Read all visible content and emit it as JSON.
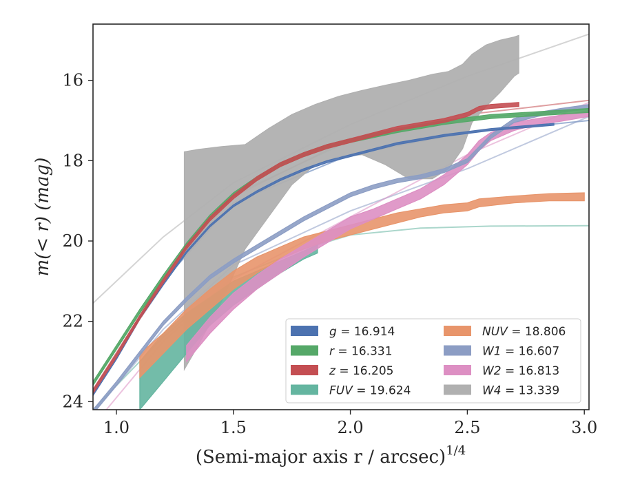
{
  "chart_data": {
    "type": "line",
    "xlabel": "(Semi-major axis r / arcsec)",
    "xlabel_superscript": "1/4",
    "ylabel": "m(< r) (mag)",
    "xlim": [
      0.9,
      3.02
    ],
    "ylim": [
      24.2,
      14.6
    ],
    "y_inverted": true,
    "xticks": [
      1.0,
      1.5,
      2.0,
      2.5,
      3.0
    ],
    "xtick_labels": [
      "1.0",
      "1.5",
      "2.0",
      "2.5",
      "3.0"
    ],
    "yticks": [
      16,
      18,
      20,
      22,
      24
    ],
    "ytick_labels": [
      "16",
      "18",
      "20",
      "22",
      "24"
    ],
    "grid": false,
    "legend_position": "lower-right",
    "legend_columns": 2,
    "series": [
      {
        "name": "g = 16.914",
        "label_italic": "g",
        "label_value": "= 16.914",
        "color": "#4c72b0",
        "band": [
          [
            0.9,
            23.8,
            23.85
          ],
          [
            1.0,
            22.9,
            22.95
          ],
          [
            1.1,
            21.9,
            21.95
          ],
          [
            1.2,
            21.05,
            21.1
          ],
          [
            1.3,
            20.25,
            20.3
          ],
          [
            1.4,
            19.6,
            19.65
          ],
          [
            1.5,
            19.1,
            19.15
          ],
          [
            1.6,
            18.75,
            18.8
          ],
          [
            1.7,
            18.45,
            18.5
          ],
          [
            1.8,
            18.2,
            18.25
          ],
          [
            1.9,
            18.0,
            18.05
          ],
          [
            2.0,
            17.85,
            17.9
          ],
          [
            2.2,
            17.55,
            17.6
          ],
          [
            2.4,
            17.35,
            17.4
          ],
          [
            2.6,
            17.2,
            17.25
          ],
          [
            2.87,
            17.07,
            17.12
          ]
        ],
        "extrapolation": [
          [
            0.9,
            23.75
          ],
          [
            1.2,
            21.0
          ],
          [
            1.5,
            19.05
          ],
          [
            2.0,
            17.85
          ],
          [
            2.5,
            17.3
          ],
          [
            3.02,
            17.0
          ]
        ]
      },
      {
        "name": "r = 16.331",
        "label_italic": "r",
        "label_value": "= 16.331",
        "color": "#55a868",
        "band": [
          [
            0.9,
            23.5,
            23.6
          ],
          [
            1.0,
            22.6,
            22.7
          ],
          [
            1.1,
            21.7,
            21.8
          ],
          [
            1.2,
            20.85,
            20.95
          ],
          [
            1.3,
            20.05,
            20.15
          ],
          [
            1.4,
            19.35,
            19.45
          ],
          [
            1.5,
            18.8,
            18.9
          ],
          [
            1.6,
            18.4,
            18.5
          ],
          [
            1.7,
            18.05,
            18.15
          ],
          [
            1.8,
            17.8,
            17.9
          ],
          [
            1.9,
            17.6,
            17.7
          ],
          [
            2.0,
            17.45,
            17.55
          ],
          [
            2.2,
            17.2,
            17.3
          ],
          [
            2.4,
            17.0,
            17.1
          ],
          [
            2.6,
            16.85,
            16.95
          ],
          [
            2.8,
            16.78,
            16.88
          ],
          [
            3.02,
            16.7,
            16.8
          ]
        ],
        "extrapolation": [
          [
            0.9,
            23.55
          ],
          [
            1.2,
            20.9
          ],
          [
            1.5,
            18.85
          ],
          [
            2.0,
            17.5
          ],
          [
            2.5,
            16.95
          ],
          [
            3.02,
            16.72
          ]
        ]
      },
      {
        "name": "z = 16.205",
        "label_italic": "z",
        "label_value": "= 16.205",
        "color": "#c44e52",
        "band": [
          [
            0.9,
            23.7,
            23.8
          ],
          [
            1.0,
            22.8,
            22.9
          ],
          [
            1.1,
            21.85,
            21.95
          ],
          [
            1.2,
            20.95,
            21.05
          ],
          [
            1.3,
            20.1,
            20.2
          ],
          [
            1.4,
            19.4,
            19.5
          ],
          [
            1.5,
            18.85,
            18.95
          ],
          [
            1.6,
            18.4,
            18.5
          ],
          [
            1.7,
            18.05,
            18.15
          ],
          [
            1.8,
            17.8,
            17.9
          ],
          [
            1.9,
            17.6,
            17.7
          ],
          [
            2.0,
            17.45,
            17.55
          ],
          [
            2.2,
            17.15,
            17.25
          ],
          [
            2.4,
            16.95,
            17.05
          ],
          [
            2.5,
            16.8,
            16.9
          ],
          [
            2.55,
            16.65,
            16.75
          ],
          [
            2.6,
            16.6,
            16.7
          ],
          [
            2.72,
            16.55,
            16.65
          ]
        ],
        "extrapolation": [
          [
            0.9,
            23.7
          ],
          [
            1.2,
            20.95
          ],
          [
            1.5,
            18.9
          ],
          [
            2.0,
            17.45
          ],
          [
            2.5,
            16.85
          ],
          [
            3.02,
            16.5
          ]
        ]
      },
      {
        "name": "FUV = 19.624",
        "label_italic": "FUV",
        "label_value": "= 19.624",
        "color": "#64b5a0",
        "band": [
          [
            1.1,
            23.0,
            24.2
          ],
          [
            1.2,
            22.3,
            23.5
          ],
          [
            1.3,
            21.8,
            22.8
          ],
          [
            1.4,
            21.4,
            22.1
          ],
          [
            1.5,
            21.0,
            21.6
          ],
          [
            1.6,
            20.75,
            21.2
          ],
          [
            1.7,
            20.5,
            20.8
          ],
          [
            1.8,
            20.25,
            20.45
          ],
          [
            1.86,
            20.1,
            20.3
          ]
        ],
        "extrapolation": [
          [
            0.9,
            24.2
          ],
          [
            1.2,
            22.4
          ],
          [
            1.5,
            20.9
          ],
          [
            1.8,
            20.2
          ],
          [
            2.0,
            19.85
          ],
          [
            2.3,
            19.68
          ],
          [
            2.6,
            19.63
          ],
          [
            3.02,
            19.62
          ]
        ]
      },
      {
        "name": "NUV = 18.806",
        "label_italic": "NUV",
        "label_value": "= 18.806",
        "color": "#e8956b",
        "band": [
          [
            1.1,
            22.8,
            23.4
          ],
          [
            1.2,
            22.3,
            22.8
          ],
          [
            1.3,
            21.7,
            22.2
          ],
          [
            1.4,
            21.2,
            21.7
          ],
          [
            1.5,
            20.75,
            21.2
          ],
          [
            1.6,
            20.4,
            20.8
          ],
          [
            1.7,
            20.15,
            20.45
          ],
          [
            1.8,
            19.9,
            20.2
          ],
          [
            1.9,
            19.75,
            20.0
          ],
          [
            2.0,
            19.6,
            19.85
          ],
          [
            2.1,
            19.45,
            19.7
          ],
          [
            2.2,
            19.3,
            19.55
          ],
          [
            2.3,
            19.2,
            19.4
          ],
          [
            2.4,
            19.1,
            19.3
          ],
          [
            2.5,
            19.05,
            19.25
          ],
          [
            2.55,
            18.95,
            19.15
          ],
          [
            2.7,
            18.88,
            19.05
          ],
          [
            2.85,
            18.82,
            19.0
          ],
          [
            3.0,
            18.8,
            19.0
          ]
        ],
        "extrapolation": []
      },
      {
        "name": "W1 = 16.607",
        "label_italic": "W1",
        "label_value": "= 16.607",
        "color": "#8c9dc4",
        "band": [
          [
            0.9,
            24.2,
            24.3
          ],
          [
            1.0,
            23.5,
            23.6
          ],
          [
            1.1,
            22.75,
            22.85
          ],
          [
            1.2,
            22.0,
            22.1
          ],
          [
            1.3,
            21.4,
            21.5
          ],
          [
            1.4,
            20.85,
            20.95
          ],
          [
            1.5,
            20.45,
            20.55
          ],
          [
            1.6,
            20.1,
            20.2
          ],
          [
            1.7,
            19.75,
            19.85
          ],
          [
            1.8,
            19.4,
            19.5
          ],
          [
            1.9,
            19.1,
            19.2
          ],
          [
            2.0,
            18.8,
            18.9
          ],
          [
            2.1,
            18.6,
            18.7
          ],
          [
            2.2,
            18.45,
            18.55
          ],
          [
            2.3,
            18.35,
            18.45
          ],
          [
            2.4,
            18.2,
            18.3
          ],
          [
            2.5,
            17.95,
            18.05
          ],
          [
            2.6,
            17.35,
            17.45
          ],
          [
            2.7,
            16.95,
            17.05
          ],
          [
            2.8,
            16.8,
            16.9
          ],
          [
            2.9,
            16.7,
            16.8
          ],
          [
            3.02,
            16.6,
            16.7
          ]
        ],
        "extrapolation": [
          [
            0.9,
            24.3
          ],
          [
            1.2,
            22.2
          ],
          [
            1.5,
            20.6
          ],
          [
            2.0,
            19.25
          ],
          [
            2.5,
            18.2
          ],
          [
            3.02,
            16.9
          ]
        ]
      },
      {
        "name": "W2 = 16.813",
        "label_italic": "W2",
        "label_value": "= 16.813",
        "color": "#dd8fc3",
        "band": [
          [
            1.3,
            22.6,
            23.0
          ],
          [
            1.4,
            21.9,
            22.3
          ],
          [
            1.5,
            21.3,
            21.7
          ],
          [
            1.6,
            20.85,
            21.2
          ],
          [
            1.7,
            20.45,
            20.8
          ],
          [
            1.8,
            20.1,
            20.4
          ],
          [
            1.9,
            19.75,
            20.05
          ],
          [
            2.0,
            19.4,
            19.7
          ],
          [
            2.1,
            19.2,
            19.45
          ],
          [
            2.2,
            18.95,
            19.2
          ],
          [
            2.3,
            18.7,
            18.95
          ],
          [
            2.4,
            18.35,
            18.6
          ],
          [
            2.5,
            17.85,
            18.1
          ],
          [
            2.55,
            17.5,
            17.75
          ],
          [
            2.6,
            17.3,
            17.5
          ],
          [
            2.7,
            17.05,
            17.25
          ],
          [
            2.8,
            16.95,
            17.1
          ],
          [
            2.9,
            16.87,
            17.02
          ],
          [
            3.02,
            16.75,
            16.9
          ]
        ],
        "extrapolation": [
          [
            0.9,
            24.6
          ],
          [
            1.2,
            22.5
          ],
          [
            1.5,
            20.95
          ],
          [
            2.0,
            19.4
          ],
          [
            2.5,
            17.85
          ],
          [
            3.02,
            16.55
          ]
        ]
      },
      {
        "name": "W4 = 13.339",
        "label_italic": "W4",
        "label_value": "= 13.339",
        "color": "#b0b0b0",
        "band": [
          [
            1.29,
            17.78,
            23.2
          ],
          [
            1.35,
            17.72,
            22.6
          ],
          [
            1.45,
            17.65,
            21.5
          ],
          [
            1.55,
            17.6,
            20.2
          ],
          [
            1.65,
            17.2,
            19.4
          ],
          [
            1.75,
            16.85,
            18.6
          ],
          [
            1.85,
            16.6,
            18.1
          ],
          [
            1.95,
            16.4,
            17.9
          ],
          [
            2.05,
            16.25,
            17.85
          ],
          [
            2.15,
            16.12,
            18.1
          ],
          [
            2.25,
            16.0,
            18.45
          ],
          [
            2.35,
            15.85,
            18.45
          ],
          [
            2.42,
            15.78,
            18.2
          ],
          [
            2.48,
            15.6,
            17.7
          ],
          [
            2.52,
            15.35,
            17.05
          ],
          [
            2.58,
            15.12,
            16.65
          ],
          [
            2.64,
            15.0,
            16.3
          ],
          [
            2.7,
            14.92,
            15.9
          ],
          [
            2.72,
            14.88,
            15.82
          ]
        ],
        "extrapolation": [
          [
            0.9,
            21.55
          ],
          [
            1.2,
            19.9
          ],
          [
            1.5,
            18.55
          ],
          [
            2.0,
            17.1
          ],
          [
            2.5,
            15.9
          ],
          [
            3.02,
            14.85
          ]
        ]
      }
    ]
  }
}
